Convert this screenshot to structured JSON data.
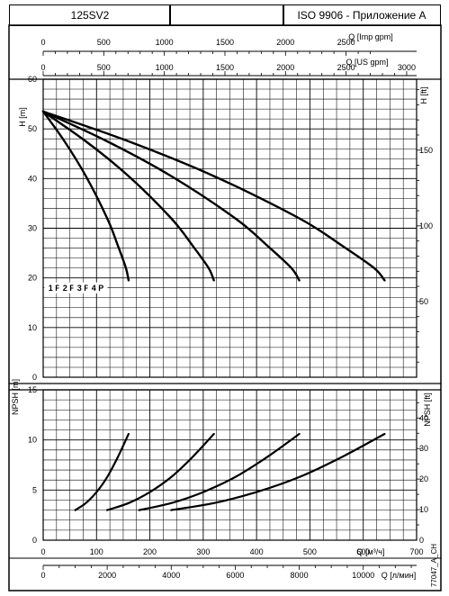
{
  "header": {
    "model": "125SV2",
    "middle": "",
    "standard": "ISO 9906 - Приложение A"
  },
  "doc_code": "77047_A_CH",
  "chart_data": [
    {
      "type": "line",
      "title": "",
      "ylabel_left": "H [m]",
      "ylabel_right": "H [ft]",
      "ylim_m": [
        0,
        60
      ],
      "yticks_m": [
        0,
        10,
        20,
        30,
        40,
        50,
        60
      ],
      "yticks_ft": [
        50,
        100,
        150
      ],
      "xlim_m3h": [
        0,
        700
      ],
      "top_axes": [
        {
          "label": "Q [Imp gpm]",
          "ticks": [
            0,
            500,
            1000,
            1500,
            2000,
            2500
          ]
        },
        {
          "label": "Q [US gpm]",
          "ticks": [
            0,
            500,
            1000,
            1500,
            2000,
            2500,
            3000
          ]
        }
      ],
      "grid": true,
      "series": [
        {
          "name": "1 P",
          "x": [
            0,
            40,
            80,
            120,
            140,
            155,
            160
          ],
          "y": [
            53.5,
            47.5,
            40.5,
            32,
            26.5,
            22,
            19.5
          ]
        },
        {
          "name": "2 P",
          "x": [
            0,
            80,
            160,
            240,
            280,
            310,
            320
          ],
          "y": [
            53.5,
            47.5,
            40.5,
            32,
            26.5,
            22,
            19.5
          ]
        },
        {
          "name": "3 P",
          "x": [
            0,
            120,
            240,
            360,
            420,
            465,
            480
          ],
          "y": [
            53.5,
            47.5,
            40.5,
            32,
            26.5,
            22,
            19.5
          ]
        },
        {
          "name": "4 P",
          "x": [
            0,
            160,
            320,
            480,
            560,
            620,
            640
          ],
          "y": [
            53.5,
            47.5,
            40.5,
            32,
            26.5,
            22,
            19.5
          ]
        }
      ],
      "curve_labels": [
        {
          "text": "1 P",
          "x": 105,
          "y": 18
        },
        {
          "text": "2 P",
          "x": 240,
          "y": 18
        },
        {
          "text": "3 P",
          "x": 375,
          "y": 18
        },
        {
          "text": "4 P",
          "x": 510,
          "y": 18
        }
      ]
    },
    {
      "type": "line",
      "title": "",
      "ylabel_left": "NPSH [m]",
      "ylabel_right": "NPSH [ft]",
      "ylim_m": [
        0,
        15
      ],
      "yticks_m": [
        0,
        5,
        10,
        15
      ],
      "yticks_ft": [
        0,
        10,
        20,
        30,
        40
      ],
      "xlim_m3h": [
        0,
        700
      ],
      "bottom_axes": [
        {
          "label": "Q [м³/ч]",
          "ticks": [
            0,
            100,
            200,
            300,
            400,
            500,
            600,
            700
          ]
        },
        {
          "label": "Q [л/мин]",
          "ticks": [
            0,
            2000,
            4000,
            6000,
            8000,
            10000
          ]
        }
      ],
      "grid": true,
      "series": [
        {
          "name": "1 P",
          "x": [
            60,
            80,
            100,
            120,
            140,
            160
          ],
          "y": [
            3,
            3.7,
            4.8,
            6.3,
            8.3,
            10.6
          ]
        },
        {
          "name": "2 P",
          "x": [
            120,
            160,
            200,
            240,
            280,
            320
          ],
          "y": [
            3,
            3.7,
            4.8,
            6.3,
            8.3,
            10.6
          ]
        },
        {
          "name": "3 P",
          "x": [
            180,
            240,
            300,
            360,
            420,
            480
          ],
          "y": [
            3,
            3.7,
            4.8,
            6.3,
            8.3,
            10.6
          ]
        },
        {
          "name": "4 P",
          "x": [
            240,
            320,
            400,
            480,
            560,
            640
          ],
          "y": [
            3,
            3.7,
            4.8,
            6.3,
            8.3,
            10.6
          ]
        }
      ]
    }
  ]
}
